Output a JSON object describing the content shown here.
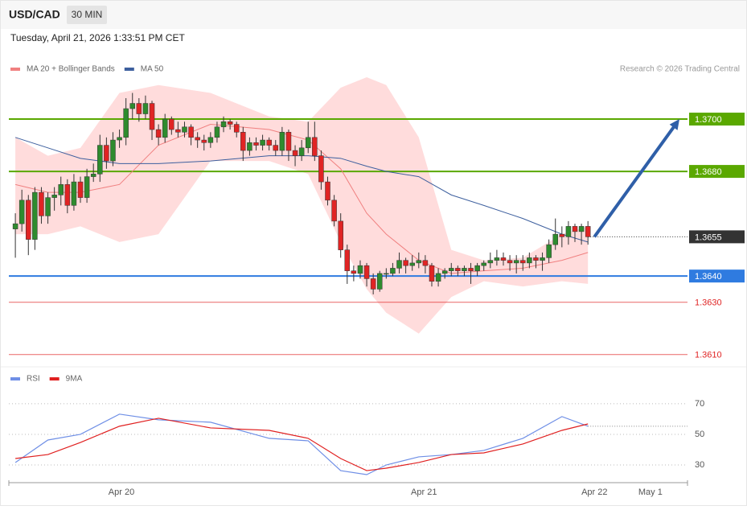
{
  "header": {
    "symbol": "USD/CAD",
    "interval": "30 MIN",
    "timestamp": "Tuesday, April 21, 2026 1:33:51 PM CET"
  },
  "chart_data": [
    {
      "type": "candlestick",
      "source": "Research © 2026 Trading Central",
      "up_color": "#2e8b2e",
      "down_color": "#e02424",
      "ylim": [
        1.3605,
        1.372
      ],
      "xlim": [
        -1,
        103.3
      ],
      "series": [
        {
          "name": "MA 20 + Bollinger Bands",
          "color": "#f08080",
          "band_color": "#ffdcdc",
          "x": [
            0,
            5,
            10,
            16,
            22,
            30,
            39,
            45,
            50,
            54,
            57,
            62,
            67,
            72,
            78,
            84,
            88
          ],
          "values": [
            1.3675,
            1.3672,
            1.3672,
            1.3675,
            1.369,
            1.3698,
            1.3696,
            1.3692,
            1.3681,
            1.3664,
            1.3656,
            1.3646,
            1.3641,
            1.3642,
            1.3643,
            1.3646,
            1.3649
          ],
          "upper": [
            1.3693,
            1.3686,
            1.3689,
            1.371,
            1.3713,
            1.371,
            1.3701,
            1.3699,
            1.3712,
            1.3716,
            1.3713,
            1.3693,
            1.365,
            1.3646,
            1.3647,
            1.3656,
            1.3659
          ],
          "lower": [
            1.3656,
            1.3656,
            1.3659,
            1.3653,
            1.3656,
            1.3684,
            1.3684,
            1.3679,
            1.3653,
            1.3635,
            1.3626,
            1.3618,
            1.3632,
            1.3638,
            1.3636,
            1.3638,
            1.3637
          ]
        },
        {
          "name": "MA 50",
          "color": "#3d5f9e",
          "x": [
            0,
            5,
            10,
            16,
            22,
            30,
            39,
            45,
            50,
            54,
            57,
            62,
            67,
            72,
            78,
            84,
            88
          ],
          "values": [
            1.3693,
            1.3689,
            1.3685,
            1.3683,
            1.3683,
            1.3684,
            1.3686,
            1.3686,
            1.3685,
            1.3682,
            1.368,
            1.3678,
            1.3671,
            1.3667,
            1.3662,
            1.3656,
            1.3653
          ]
        }
      ],
      "levels": [
        {
          "value": 1.37,
          "label": "1.3700",
          "color": "#5aa800",
          "filled": true
        },
        {
          "value": 1.368,
          "label": "1.3680",
          "color": "#5aa800",
          "filled": true
        },
        {
          "value": 1.3655,
          "label": "1.3655",
          "color": "#333333",
          "filled": true,
          "dotted": true
        },
        {
          "value": 1.364,
          "label": "1.3640",
          "color": "#2f7be0",
          "filled": true
        },
        {
          "value": 1.363,
          "label": "1.3630",
          "color": "#e02424",
          "filled": false
        },
        {
          "value": 1.361,
          "label": "1.3610",
          "color": "#e02424",
          "filled": false
        }
      ],
      "arrow_color": "#2f5fa8",
      "candles": [
        [
          1.3658,
          1.3664,
          1.3647,
          1.366
        ],
        [
          1.366,
          1.3673,
          1.3657,
          1.3669
        ],
        [
          1.3669,
          1.3671,
          1.3648,
          1.3654
        ],
        [
          1.3654,
          1.3674,
          1.365,
          1.3672
        ],
        [
          1.3672,
          1.3674,
          1.366,
          1.3663
        ],
        [
          1.3663,
          1.3672,
          1.366,
          1.367
        ],
        [
          1.367,
          1.3674,
          1.3665,
          1.3671
        ],
        [
          1.3671,
          1.3678,
          1.3667,
          1.3675
        ],
        [
          1.3675,
          1.3677,
          1.3664,
          1.3667
        ],
        [
          1.3667,
          1.3679,
          1.3665,
          1.3676
        ],
        [
          1.3676,
          1.3678,
          1.3668,
          1.367
        ],
        [
          1.367,
          1.3681,
          1.3668,
          1.3678
        ],
        [
          1.3678,
          1.3683,
          1.3676,
          1.3679
        ],
        [
          1.3679,
          1.3694,
          1.3676,
          1.369
        ],
        [
          1.369,
          1.3693,
          1.3681,
          1.3684
        ],
        [
          1.3684,
          1.3695,
          1.3682,
          1.3692
        ],
        [
          1.3692,
          1.3696,
          1.3689,
          1.3693
        ],
        [
          1.3693,
          1.3708,
          1.369,
          1.3704
        ],
        [
          1.3704,
          1.371,
          1.37,
          1.3706
        ],
        [
          1.3706,
          1.3708,
          1.3699,
          1.3702
        ],
        [
          1.3702,
          1.3709,
          1.37,
          1.3706
        ],
        [
          1.3706,
          1.3707,
          1.3692,
          1.3696
        ],
        [
          1.3696,
          1.3698,
          1.369,
          1.3693
        ],
        [
          1.3693,
          1.3702,
          1.3691,
          1.37
        ],
        [
          1.37,
          1.3701,
          1.3694,
          1.3696
        ],
        [
          1.3696,
          1.3699,
          1.3693,
          1.3695
        ],
        [
          1.3695,
          1.3699,
          1.3693,
          1.3697
        ],
        [
          1.3697,
          1.3698,
          1.369,
          1.3693
        ],
        [
          1.3693,
          1.3695,
          1.3689,
          1.3692
        ],
        [
          1.3692,
          1.3694,
          1.3688,
          1.3691
        ],
        [
          1.3691,
          1.3695,
          1.3689,
          1.3693
        ],
        [
          1.3693,
          1.3699,
          1.3691,
          1.3697
        ],
        [
          1.3697,
          1.3701,
          1.3695,
          1.3699
        ],
        [
          1.3699,
          1.37,
          1.3696,
          1.3698
        ],
        [
          1.3698,
          1.3699,
          1.3693,
          1.3695
        ],
        [
          1.3695,
          1.3697,
          1.3684,
          1.3688
        ],
        [
          1.3688,
          1.3693,
          1.3686,
          1.3691
        ],
        [
          1.3691,
          1.3693,
          1.3688,
          1.369
        ],
        [
          1.369,
          1.3694,
          1.3688,
          1.3692
        ],
        [
          1.3692,
          1.3693,
          1.3688,
          1.369
        ],
        [
          1.369,
          1.3692,
          1.3686,
          1.3688
        ],
        [
          1.3688,
          1.3697,
          1.3686,
          1.3695
        ],
        [
          1.3695,
          1.3696,
          1.3684,
          1.3688
        ],
        [
          1.3688,
          1.369,
          1.3682,
          1.3686
        ],
        [
          1.3686,
          1.3692,
          1.3684,
          1.3689
        ],
        [
          1.3689,
          1.3699,
          1.3687,
          1.3693
        ],
        [
          1.3693,
          1.3699,
          1.3684,
          1.3686
        ],
        [
          1.3686,
          1.3688,
          1.3673,
          1.3676
        ],
        [
          1.3676,
          1.3678,
          1.3667,
          1.3669
        ],
        [
          1.3669,
          1.3671,
          1.3659,
          1.3661
        ],
        [
          1.3661,
          1.3664,
          1.3647,
          1.365
        ],
        [
          1.365,
          1.3652,
          1.3637,
          1.3642
        ],
        [
          1.3642,
          1.3644,
          1.3638,
          1.3641
        ],
        [
          1.3641,
          1.3646,
          1.3639,
          1.3644
        ],
        [
          1.3644,
          1.3645,
          1.3636,
          1.3639
        ],
        [
          1.3639,
          1.3641,
          1.3633,
          1.3635
        ],
        [
          1.3635,
          1.3642,
          1.3634,
          1.3641
        ],
        [
          1.3641,
          1.3643,
          1.3639,
          1.3641
        ],
        [
          1.3641,
          1.3645,
          1.364,
          1.3643
        ],
        [
          1.3643,
          1.3649,
          1.3641,
          1.3646
        ],
        [
          1.3646,
          1.3647,
          1.3641,
          1.3644
        ],
        [
          1.3644,
          1.3648,
          1.3642,
          1.3645
        ],
        [
          1.3645,
          1.3649,
          1.3643,
          1.3646
        ],
        [
          1.3646,
          1.3648,
          1.3641,
          1.3644
        ],
        [
          1.3644,
          1.3645,
          1.3636,
          1.3638
        ],
        [
          1.3638,
          1.3643,
          1.3636,
          1.3641
        ],
        [
          1.3641,
          1.3643,
          1.3639,
          1.3642
        ],
        [
          1.3642,
          1.3645,
          1.364,
          1.3643
        ],
        [
          1.3643,
          1.3644,
          1.364,
          1.3642
        ],
        [
          1.3642,
          1.3644,
          1.364,
          1.3643
        ],
        [
          1.3643,
          1.3645,
          1.3637,
          1.3642
        ],
        [
          1.3642,
          1.3645,
          1.364,
          1.3644
        ],
        [
          1.3644,
          1.3646,
          1.3642,
          1.3645
        ],
        [
          1.3645,
          1.3649,
          1.3643,
          1.3646
        ],
        [
          1.3646,
          1.365,
          1.3644,
          1.3647
        ],
        [
          1.3647,
          1.3649,
          1.3644,
          1.3646
        ],
        [
          1.3646,
          1.3648,
          1.3642,
          1.3645
        ],
        [
          1.3645,
          1.3648,
          1.3641,
          1.3646
        ],
        [
          1.3646,
          1.3648,
          1.3642,
          1.3645
        ],
        [
          1.3645,
          1.3649,
          1.3643,
          1.3647
        ],
        [
          1.3647,
          1.3648,
          1.3643,
          1.3646
        ],
        [
          1.3646,
          1.3649,
          1.3642,
          1.3647
        ],
        [
          1.3647,
          1.3654,
          1.3645,
          1.3652
        ],
        [
          1.3652,
          1.3662,
          1.365,
          1.3656
        ],
        [
          1.3656,
          1.3659,
          1.3651,
          1.3655
        ],
        [
          1.3655,
          1.3661,
          1.3652,
          1.3659
        ],
        [
          1.3659,
          1.366,
          1.3653,
          1.3657
        ],
        [
          1.3657,
          1.366,
          1.3652,
          1.3659
        ],
        [
          1.3659,
          1.3661,
          1.3652,
          1.3655
        ]
      ]
    },
    {
      "type": "line",
      "ylim": [
        19.5,
        92
      ],
      "yticks": [
        70,
        50,
        30
      ],
      "xlim": [
        -1,
        103.3
      ],
      "xticks": [
        {
          "value": 16.3,
          "label": "Apr 20"
        },
        {
          "value": 62.8,
          "label": "Apr 21"
        },
        {
          "value": 89,
          "label": "Apr 22"
        },
        {
          "value": 97.6,
          "label": "May 1"
        }
      ],
      "series": [
        {
          "name": "RSI",
          "color": "#6f8fe6",
          "x": [
            0,
            5,
            10,
            16,
            22,
            30,
            39,
            45,
            50,
            54,
            57,
            62,
            67,
            72,
            78,
            84,
            88
          ],
          "values": [
            31.6,
            46.3,
            50,
            63.2,
            59.5,
            57.9,
            47.4,
            45.8,
            26.3,
            23.7,
            30,
            35.3,
            36.8,
            39.5,
            47.4,
            61.6,
            55.3
          ]
        },
        {
          "name": "9MA",
          "color": "#e02020",
          "x": [
            0,
            5,
            10,
            16,
            22,
            30,
            39,
            45,
            50,
            54,
            57,
            62,
            67,
            72,
            78,
            84,
            88
          ],
          "values": [
            34.2,
            36.8,
            44.7,
            55.3,
            60.5,
            54.2,
            52.6,
            47.4,
            34.2,
            26.3,
            27.9,
            31.6,
            36.8,
            37.9,
            43.7,
            52.6,
            56.8
          ]
        }
      ]
    }
  ]
}
